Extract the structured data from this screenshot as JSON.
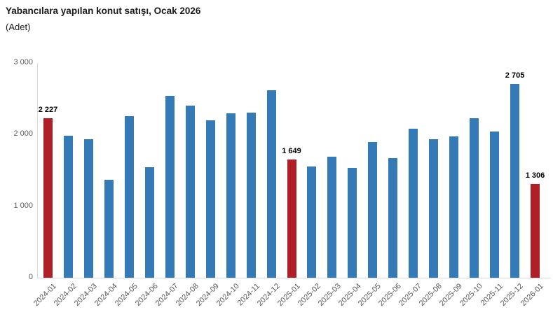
{
  "chart_data": {
    "type": "bar",
    "title": "Yabancılara yapılan konut satışı, Ocak 2026",
    "subtitle": "(Adet)",
    "categories": [
      "2024-01",
      "2024-02",
      "2024-03",
      "2024-04",
      "2024-05",
      "2024-06",
      "2024-07",
      "2024-08",
      "2024-09",
      "2024-10",
      "2024-11",
      "2024-12",
      "2025-01",
      "2025-02",
      "2025-03",
      "2025-04",
      "2025-05",
      "2025-06",
      "2025-07",
      "2025-08",
      "2025-09",
      "2025-10",
      "2025-11",
      "2025-12",
      "2026-01"
    ],
    "values": [
      2227,
      1985,
      1930,
      1370,
      2255,
      1540,
      2545,
      2400,
      2200,
      2300,
      2305,
      2620,
      1649,
      1550,
      1690,
      1535,
      1895,
      1670,
      2080,
      1935,
      1970,
      2230,
      2040,
      2705,
      1306
    ],
    "data_labels": [
      "2 227",
      null,
      null,
      null,
      null,
      null,
      null,
      null,
      null,
      null,
      null,
      null,
      "1 649",
      null,
      null,
      null,
      null,
      null,
      null,
      null,
      null,
      null,
      null,
      "2 705",
      "1 306"
    ],
    "highlighted_indices": [
      0,
      12,
      24
    ],
    "bar_color": "#347ab6",
    "highlight_color": "#b01e28",
    "axis_color": "#d9d9d9",
    "tick_label_color": "#595959",
    "ylim": [
      0,
      3000
    ],
    "yticks": [
      {
        "label": "3 000",
        "value": 3000
      },
      {
        "label": "2 000",
        "value": 2000
      },
      {
        "label": "1 000",
        "value": 1000
      },
      {
        "label": "0",
        "value": 0
      }
    ],
    "grid": false,
    "legend": null
  }
}
